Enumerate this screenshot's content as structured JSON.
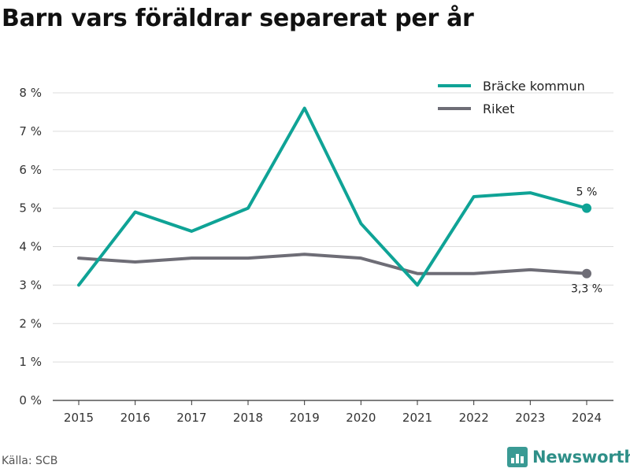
{
  "title": "Barn vars föräldrar separerat per år",
  "source": "Källa: SCB",
  "brand": "Newsworthy",
  "colors": {
    "bracke": "#0fa396",
    "riket": "#6e6d76",
    "grid": "#dcdcdc"
  },
  "chart_data": {
    "type": "line",
    "x": [
      "2015",
      "2016",
      "2017",
      "2018",
      "2019",
      "2020",
      "2021",
      "2022",
      "2023",
      "2024"
    ],
    "ylim": [
      0,
      8
    ],
    "yticks": [
      "0 %",
      "1 %",
      "2 %",
      "3 %",
      "4 %",
      "5 %",
      "6 %",
      "7 %",
      "8 %"
    ],
    "grid": true,
    "legend": "top-right",
    "series": [
      {
        "name": "Bräcke kommun",
        "values": [
          3.0,
          4.9,
          4.4,
          5.0,
          7.6,
          4.6,
          3.0,
          5.3,
          5.4,
          5.0
        ],
        "end_label": "5 %"
      },
      {
        "name": "Riket",
        "values": [
          3.7,
          3.6,
          3.7,
          3.7,
          3.8,
          3.7,
          3.3,
          3.3,
          3.4,
          3.3
        ],
        "end_label": "3,3 %"
      }
    ]
  }
}
